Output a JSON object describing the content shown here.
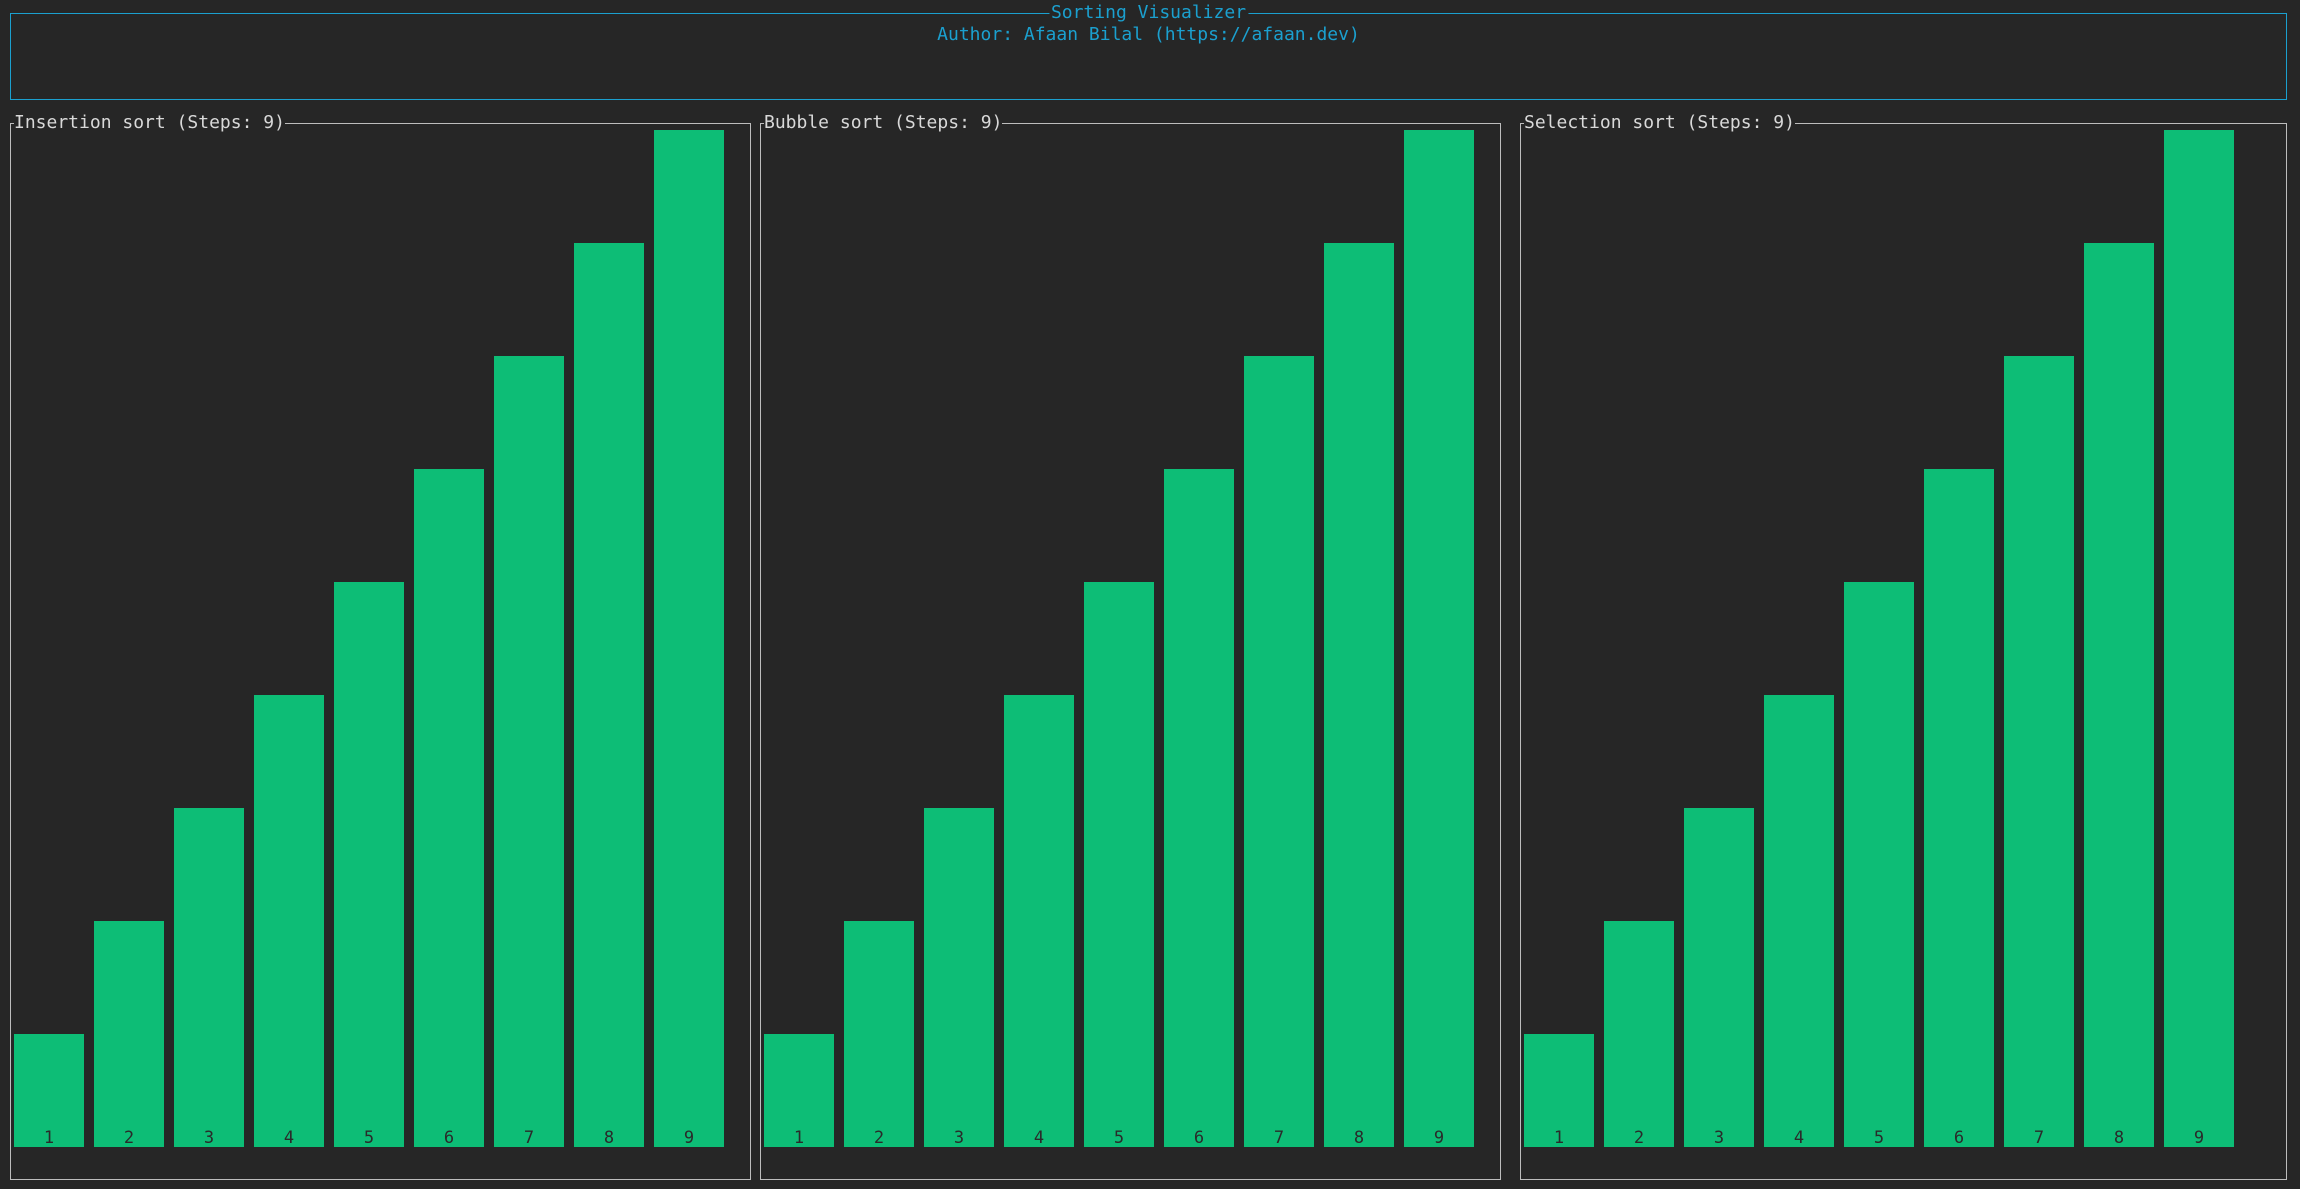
{
  "app": {
    "title": "Sorting Visualizer",
    "author": "Author: Afaan Bilal (https://afaan.dev)"
  },
  "colors": {
    "accent": "#1ba0cf",
    "bar": "#0dbd76",
    "bar_label": "#2a2a2a",
    "panel_border": "#bdbdbd",
    "background": "#262626"
  },
  "panels": [
    {
      "title": "Insertion sort (Steps: 9)"
    },
    {
      "title": "Bubble sort (Steps: 9)"
    },
    {
      "title": "Selection sort (Steps: 9)"
    }
  ],
  "chart_data": [
    {
      "type": "bar",
      "title": "Insertion sort (Steps: 9)",
      "categories": [
        "1",
        "2",
        "3",
        "4",
        "5",
        "6",
        "7",
        "8",
        "9"
      ],
      "values": [
        1,
        2,
        3,
        4,
        5,
        6,
        7,
        8,
        9
      ],
      "ylim": [
        0,
        9
      ],
      "grid": false
    },
    {
      "type": "bar",
      "title": "Bubble sort (Steps: 9)",
      "categories": [
        "1",
        "2",
        "3",
        "4",
        "5",
        "6",
        "7",
        "8",
        "9"
      ],
      "values": [
        1,
        2,
        3,
        4,
        5,
        6,
        7,
        8,
        9
      ],
      "ylim": [
        0,
        9
      ],
      "grid": false
    },
    {
      "type": "bar",
      "title": "Selection sort (Steps: 9)",
      "categories": [
        "1",
        "2",
        "3",
        "4",
        "5",
        "6",
        "7",
        "8",
        "9"
      ],
      "values": [
        1,
        2,
        3,
        4,
        5,
        6,
        7,
        8,
        9
      ],
      "ylim": [
        0,
        9
      ],
      "grid": false
    }
  ]
}
